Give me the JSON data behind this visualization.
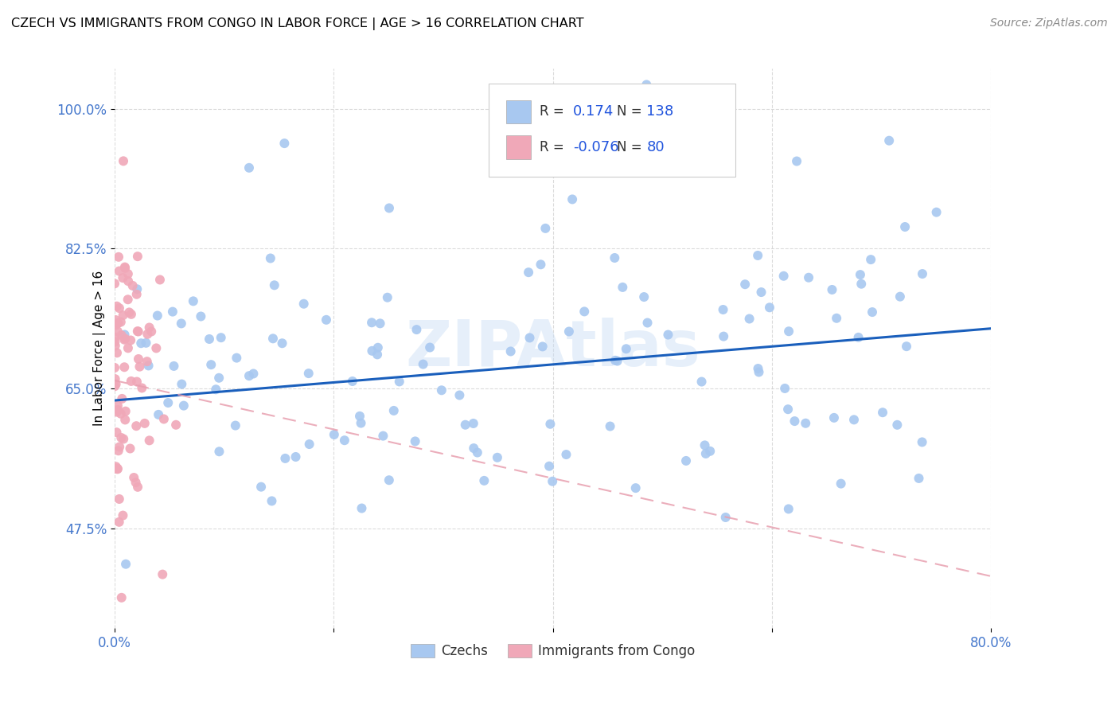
{
  "title": "CZECH VS IMMIGRANTS FROM CONGO IN LABOR FORCE | AGE > 16 CORRELATION CHART",
  "source": "Source: ZipAtlas.com",
  "ylabel_label": "In Labor Force | Age > 16",
  "legend_r_blue": "0.174",
  "legend_n_blue": "138",
  "legend_r_pink": "-0.076",
  "legend_n_pink": "80",
  "legend_label_blue": "Czechs",
  "legend_label_pink": "Immigrants from Congo",
  "watermark": "ZIPAtlas",
  "blue_color": "#a8c8f0",
  "pink_color": "#f0a8b8",
  "blue_line_color": "#1a5fbc",
  "pink_line_color": "#e8a0b0",
  "x_min": 0.0,
  "x_max": 0.8,
  "y_min": 0.35,
  "y_max": 1.05,
  "ytick_vals": [
    0.475,
    0.65,
    0.825,
    1.0
  ],
  "ytick_labels": [
    "47.5%",
    "65.0%",
    "82.5%",
    "100.0%"
  ],
  "xtick_vals": [
    0.0,
    0.2,
    0.4,
    0.6,
    0.8
  ],
  "xtick_labels": [
    "0.0%",
    "",
    "",
    "",
    "80.0%"
  ],
  "blue_seed": 42,
  "pink_seed": 99,
  "blue_n": 138,
  "pink_n": 80,
  "blue_R": 0.174,
  "pink_R": -0.076,
  "tick_color": "#4477cc",
  "grid_color": "#cccccc"
}
